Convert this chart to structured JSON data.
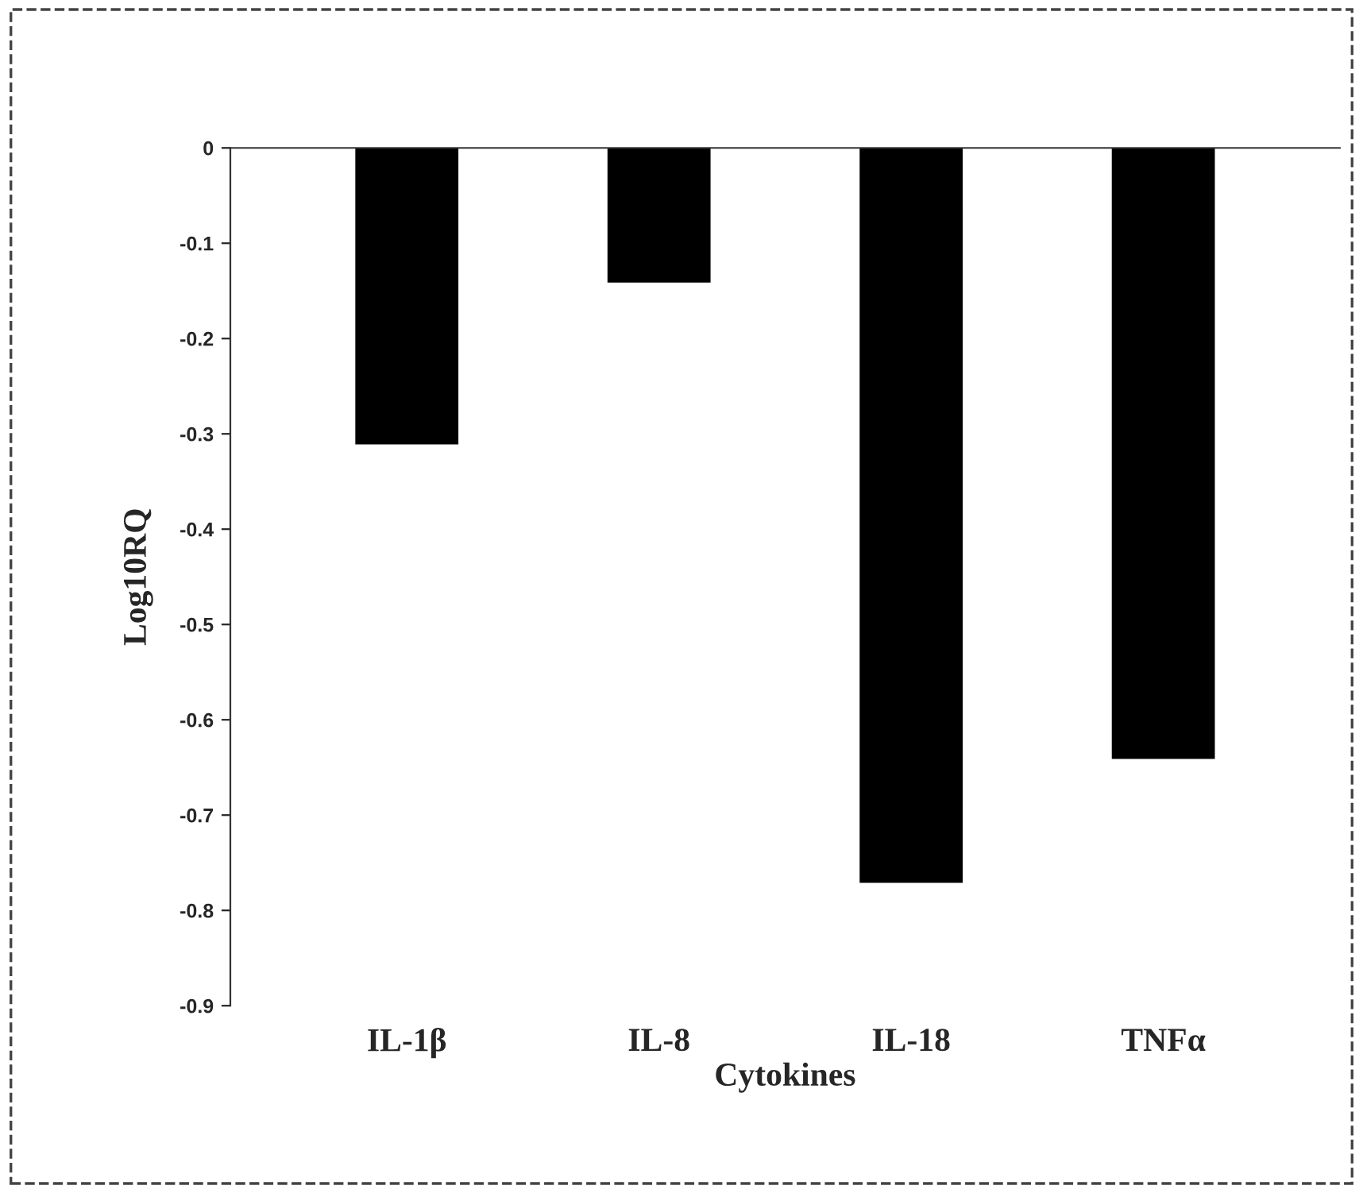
{
  "chart_data": {
    "type": "bar",
    "xlabel": "Cytokines",
    "ylabel": "Log10RQ",
    "categories": [
      "IL-1β",
      "IL-8",
      "IL-18",
      "TNFα"
    ],
    "values": [
      -0.31,
      -0.14,
      -0.77,
      -0.64
    ],
    "color": "#000000",
    "ylim": [
      -0.9,
      0
    ],
    "yticks": [
      0,
      -0.1,
      -0.2,
      -0.3,
      -0.4,
      -0.5,
      -0.6,
      -0.7,
      -0.8,
      -0.9
    ],
    "grid": false
  }
}
